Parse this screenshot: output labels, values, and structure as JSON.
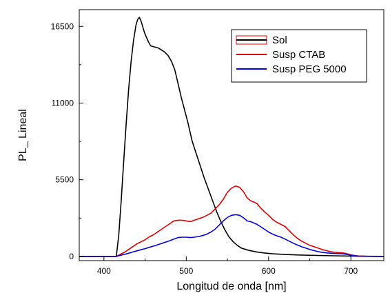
{
  "chart_data": {
    "type": "line",
    "xlabel": "Longitud de onda [nm]",
    "ylabel": "PL_ Lineal",
    "xlim": [
      370,
      740
    ],
    "ylim": [
      -300,
      17700
    ],
    "xticks_labeled": [
      400,
      500,
      600,
      700
    ],
    "xticks_minor": [
      450,
      550,
      650
    ],
    "yticks_labeled": [
      0,
      5500,
      11000,
      16500
    ],
    "yticks_minor": [
      2750,
      8250,
      13750
    ],
    "grid": false,
    "legend_position": "top-right",
    "series": [
      {
        "name": "Sol",
        "color": "#000000",
        "legend_swatch": "box",
        "points": [
          [
            370,
            0
          ],
          [
            405,
            0
          ],
          [
            415,
            0
          ],
          [
            418,
            1500
          ],
          [
            421,
            4000
          ],
          [
            424,
            6800
          ],
          [
            427,
            9500
          ],
          [
            430,
            12000
          ],
          [
            433,
            14000
          ],
          [
            436,
            15500
          ],
          [
            439,
            16600
          ],
          [
            441,
            17000
          ],
          [
            443,
            17150
          ],
          [
            445,
            16900
          ],
          [
            447,
            16500
          ],
          [
            449,
            16100
          ],
          [
            451,
            15800
          ],
          [
            454,
            15400
          ],
          [
            457,
            15100
          ],
          [
            460,
            15050
          ],
          [
            463,
            15000
          ],
          [
            466,
            14950
          ],
          [
            470,
            14800
          ],
          [
            474,
            14650
          ],
          [
            478,
            14400
          ],
          [
            482,
            14000
          ],
          [
            486,
            13400
          ],
          [
            490,
            12400
          ],
          [
            494,
            11400
          ],
          [
            498,
            10500
          ],
          [
            502,
            9600
          ],
          [
            507,
            8300
          ],
          [
            512,
            7400
          ],
          [
            517,
            6500
          ],
          [
            522,
            5600
          ],
          [
            527,
            4800
          ],
          [
            532,
            4000
          ],
          [
            537,
            3200
          ],
          [
            542,
            2500
          ],
          [
            547,
            1900
          ],
          [
            552,
            1400
          ],
          [
            557,
            1050
          ],
          [
            562,
            800
          ],
          [
            567,
            600
          ],
          [
            575,
            450
          ],
          [
            585,
            330
          ],
          [
            595,
            250
          ],
          [
            605,
            190
          ],
          [
            620,
            140
          ],
          [
            640,
            100
          ],
          [
            660,
            70
          ],
          [
            680,
            45
          ],
          [
            700,
            25
          ],
          [
            720,
            10
          ],
          [
            740,
            5
          ]
        ]
      },
      {
        "name": "Susp CTAB",
        "color": "#e00000",
        "points": [
          [
            370,
            0
          ],
          [
            415,
            0
          ],
          [
            420,
            150
          ],
          [
            425,
            300
          ],
          [
            430,
            500
          ],
          [
            435,
            700
          ],
          [
            440,
            900
          ],
          [
            445,
            1050
          ],
          [
            450,
            1200
          ],
          [
            455,
            1400
          ],
          [
            460,
            1550
          ],
          [
            465,
            1750
          ],
          [
            470,
            1950
          ],
          [
            475,
            2150
          ],
          [
            480,
            2350
          ],
          [
            485,
            2550
          ],
          [
            490,
            2600
          ],
          [
            495,
            2600
          ],
          [
            500,
            2550
          ],
          [
            505,
            2500
          ],
          [
            510,
            2600
          ],
          [
            515,
            2700
          ],
          [
            520,
            2800
          ],
          [
            525,
            2950
          ],
          [
            530,
            3100
          ],
          [
            535,
            3400
          ],
          [
            540,
            3700
          ],
          [
            545,
            4100
          ],
          [
            550,
            4600
          ],
          [
            555,
            4900
          ],
          [
            560,
            5050
          ],
          [
            565,
            4950
          ],
          [
            570,
            4600
          ],
          [
            574,
            4200
          ],
          [
            578,
            4000
          ],
          [
            582,
            3900
          ],
          [
            586,
            3800
          ],
          [
            590,
            3500
          ],
          [
            595,
            3200
          ],
          [
            600,
            2950
          ],
          [
            605,
            2650
          ],
          [
            610,
            2450
          ],
          [
            615,
            2300
          ],
          [
            620,
            2150
          ],
          [
            625,
            1850
          ],
          [
            630,
            1550
          ],
          [
            635,
            1300
          ],
          [
            640,
            1100
          ],
          [
            645,
            950
          ],
          [
            650,
            800
          ],
          [
            655,
            700
          ],
          [
            660,
            600
          ],
          [
            665,
            500
          ],
          [
            670,
            420
          ],
          [
            675,
            350
          ],
          [
            680,
            300
          ],
          [
            685,
            280
          ],
          [
            690,
            260
          ],
          [
            695,
            200
          ],
          [
            700,
            120
          ],
          [
            705,
            60
          ],
          [
            710,
            30
          ],
          [
            720,
            10
          ],
          [
            740,
            0
          ]
        ]
      },
      {
        "name": "Susp PEG 5000",
        "color": "#0000e0",
        "points": [
          [
            370,
            0
          ],
          [
            415,
            0
          ],
          [
            420,
            80
          ],
          [
            425,
            150
          ],
          [
            430,
            230
          ],
          [
            435,
            320
          ],
          [
            440,
            400
          ],
          [
            445,
            480
          ],
          [
            450,
            560
          ],
          [
            455,
            650
          ],
          [
            460,
            740
          ],
          [
            465,
            830
          ],
          [
            470,
            930
          ],
          [
            475,
            1030
          ],
          [
            480,
            1130
          ],
          [
            485,
            1250
          ],
          [
            490,
            1350
          ],
          [
            495,
            1380
          ],
          [
            500,
            1380
          ],
          [
            505,
            1350
          ],
          [
            510,
            1380
          ],
          [
            515,
            1430
          ],
          [
            520,
            1500
          ],
          [
            525,
            1600
          ],
          [
            530,
            1750
          ],
          [
            535,
            1950
          ],
          [
            540,
            2250
          ],
          [
            545,
            2550
          ],
          [
            550,
            2800
          ],
          [
            555,
            2950
          ],
          [
            560,
            3000
          ],
          [
            565,
            2950
          ],
          [
            570,
            2750
          ],
          [
            574,
            2550
          ],
          [
            578,
            2500
          ],
          [
            582,
            2400
          ],
          [
            586,
            2300
          ],
          [
            590,
            2150
          ],
          [
            595,
            1950
          ],
          [
            600,
            1750
          ],
          [
            605,
            1600
          ],
          [
            610,
            1480
          ],
          [
            615,
            1380
          ],
          [
            620,
            1250
          ],
          [
            625,
            1100
          ],
          [
            630,
            950
          ],
          [
            635,
            820
          ],
          [
            640,
            700
          ],
          [
            645,
            600
          ],
          [
            650,
            500
          ],
          [
            655,
            420
          ],
          [
            660,
            350
          ],
          [
            665,
            300
          ],
          [
            670,
            260
          ],
          [
            680,
            210
          ],
          [
            690,
            190
          ],
          [
            695,
            150
          ],
          [
            700,
            80
          ],
          [
            705,
            40
          ],
          [
            710,
            20
          ],
          [
            720,
            5
          ],
          [
            740,
            0
          ]
        ]
      }
    ]
  }
}
